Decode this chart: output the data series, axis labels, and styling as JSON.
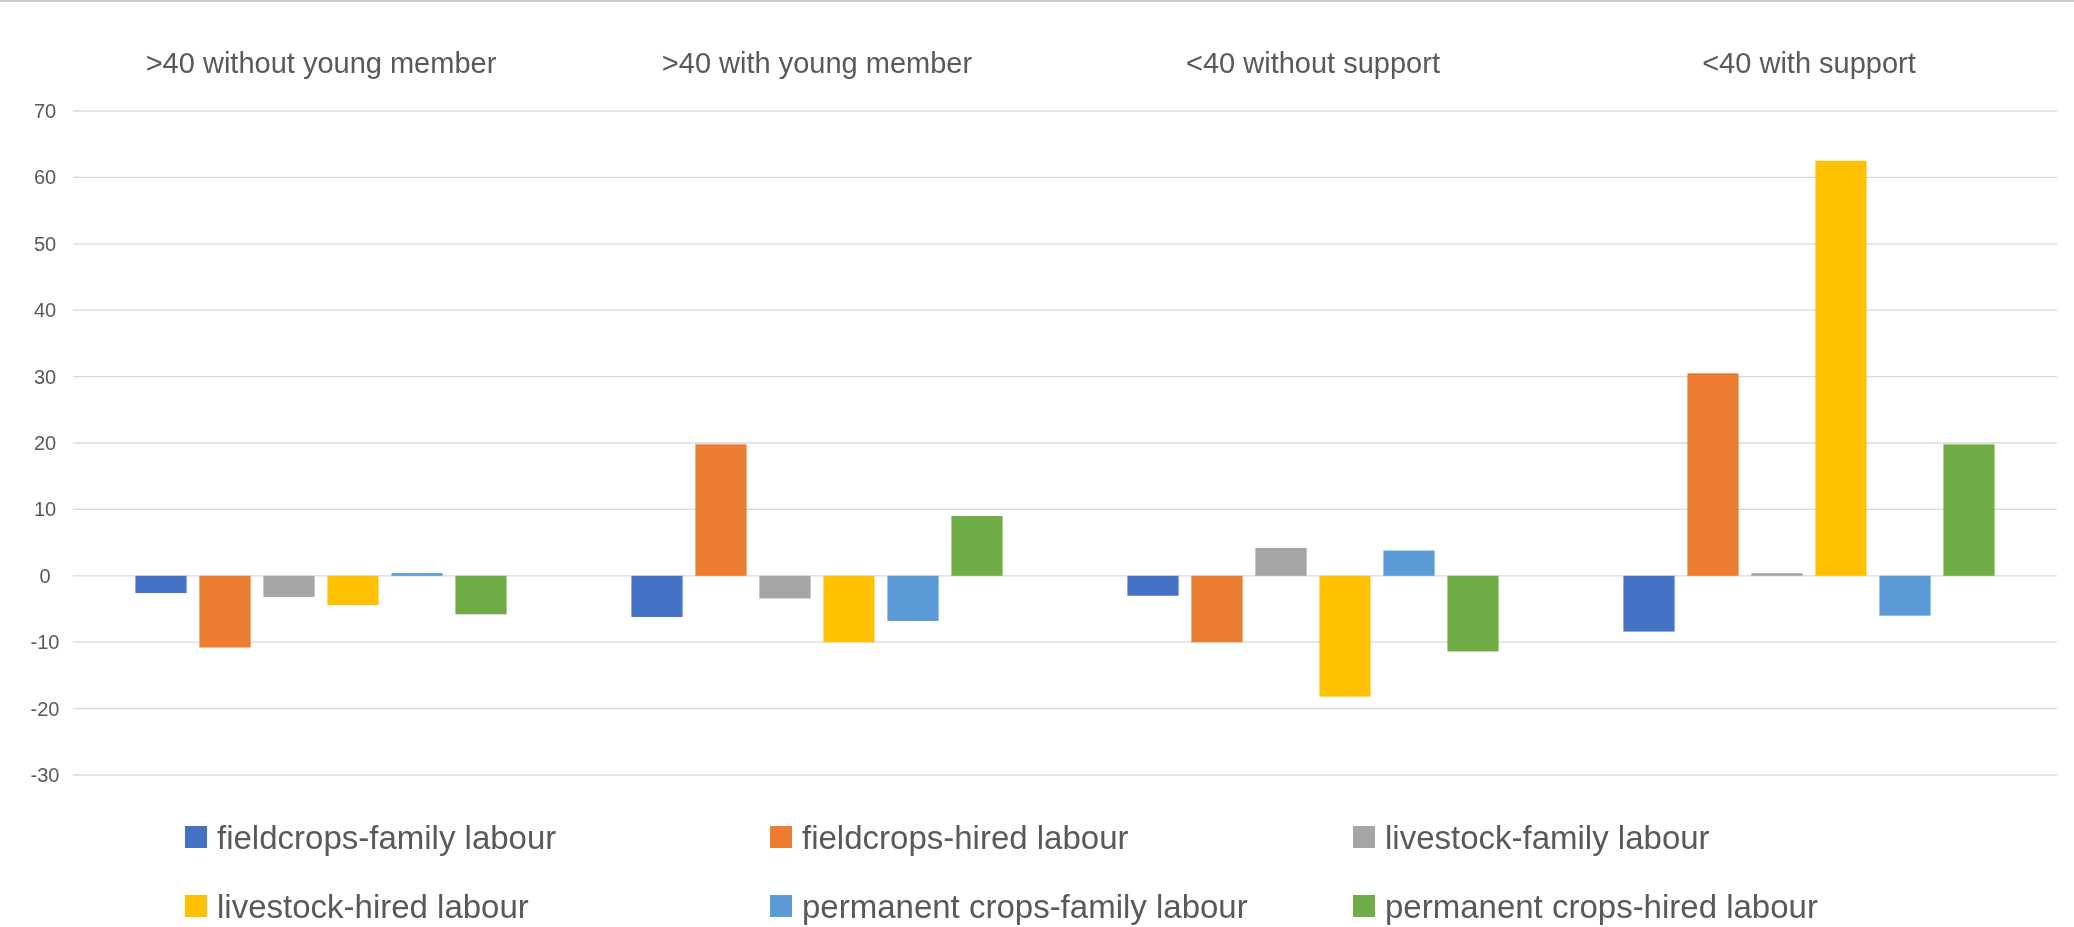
{
  "chart_data": {
    "type": "bar",
    "categories": [
      ">40 without young member",
      ">40 with young member",
      "<40 without support",
      "<40 with support"
    ],
    "series": [
      {
        "name": "fieldcrops-family labour",
        "color": "#4472c4",
        "values": [
          -2.6,
          -6.2,
          -3.0,
          -8.4
        ]
      },
      {
        "name": "fieldcrops-hired labour",
        "color": "#ed7d31",
        "values": [
          -10.8,
          19.8,
          -10.0,
          30.5
        ]
      },
      {
        "name": "livestock-family labour",
        "color": "#a5a5a5",
        "values": [
          -3.2,
          -3.4,
          4.2,
          0.4
        ]
      },
      {
        "name": "livestock-hired labour",
        "color": "#ffc000",
        "values": [
          -4.4,
          -10.0,
          -18.2,
          62.5
        ]
      },
      {
        "name": "permanent crops-family labour",
        "color": "#5b9bd5",
        "values": [
          0.4,
          -6.8,
          3.8,
          -6.0
        ]
      },
      {
        "name": "permanent crops-hired labour",
        "color": "#70ad47",
        "values": [
          -5.8,
          9.0,
          -11.4,
          19.8
        ]
      }
    ],
    "ylim": [
      -30,
      70
    ],
    "yticks": [
      -30,
      -20,
      -10,
      0,
      10,
      20,
      30,
      40,
      50,
      60,
      70
    ],
    "grid": "y",
    "legend": "bottom"
  }
}
